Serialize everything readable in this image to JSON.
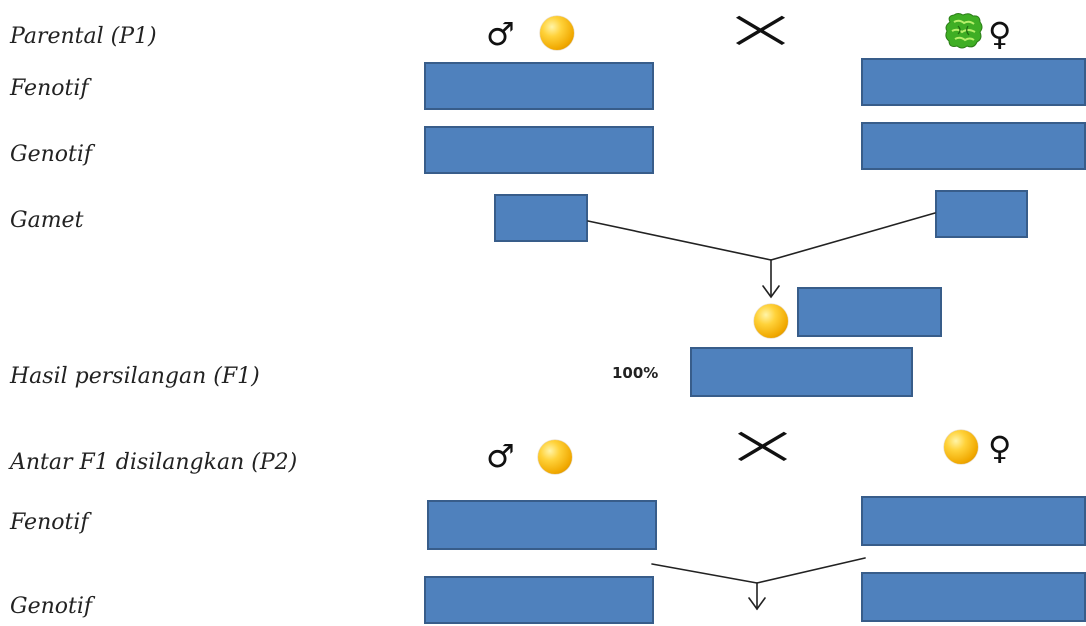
{
  "labels": {
    "parental": "Parental (P1)",
    "fenotif1": "Fenotif",
    "genotif1": "Genotif",
    "gamet": "Gamet",
    "f1": "Hasil persilangan (F1)",
    "p2": "Antar F1 disilangkan (P2)",
    "fenotif2": "Fenotif",
    "genotif2": "Genotif"
  },
  "symbols": {
    "male": "♂",
    "female": "♀"
  },
  "f1_percent": "100%",
  "colors": {
    "box_fill": "#4f81bd",
    "box_border": "#385d8a",
    "seed_yellow": "#ffd23a",
    "seed_green": "#4cbf2a"
  },
  "icons": [
    "male-symbol-icon",
    "female-symbol-icon",
    "cross-icon",
    "yellow-round-seed-icon",
    "green-wrinkled-seed-icon",
    "arrow-down-icon"
  ]
}
